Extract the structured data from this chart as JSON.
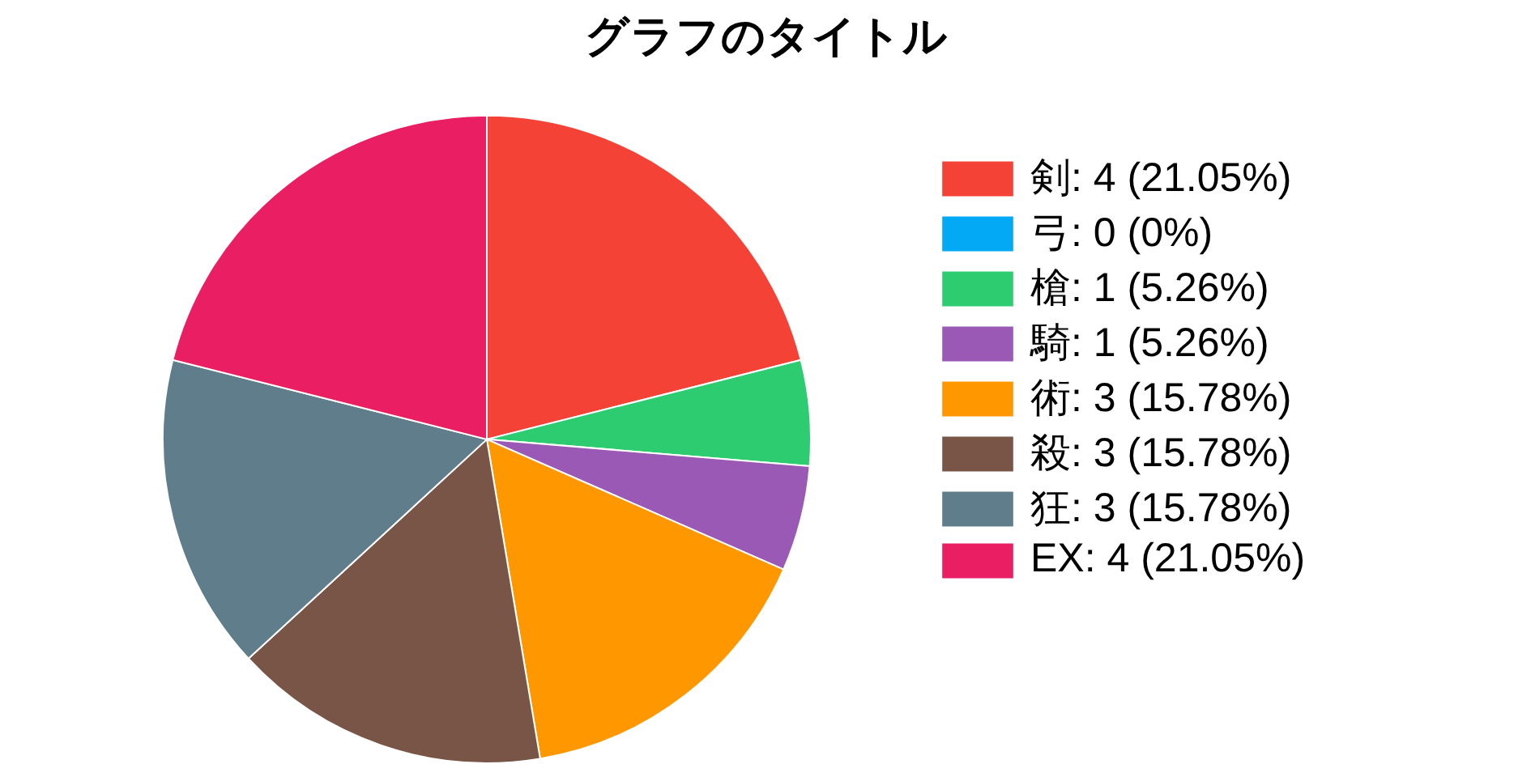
{
  "chart_data": {
    "type": "pie",
    "title": "グラフのタイトル",
    "categories": [
      "剣: 4 (21.05%)",
      "弓: 0 (0%)",
      "槍: 1 (5.26%)",
      "騎: 1 (5.26%)",
      "術: 3 (15.78%)",
      "殺: 3 (15.78%)",
      "狂: 3 (15.78%)",
      "EX: 4 (21.05%)"
    ],
    "values": [
      4,
      0,
      1,
      1,
      3,
      3,
      3,
      4
    ],
    "colors": [
      "#f44336",
      "#03a9f4",
      "#2ecc71",
      "#9b59b6",
      "#ff9800",
      "#795548",
      "#607d8b",
      "#e91e63"
    ],
    "legend": "right"
  }
}
